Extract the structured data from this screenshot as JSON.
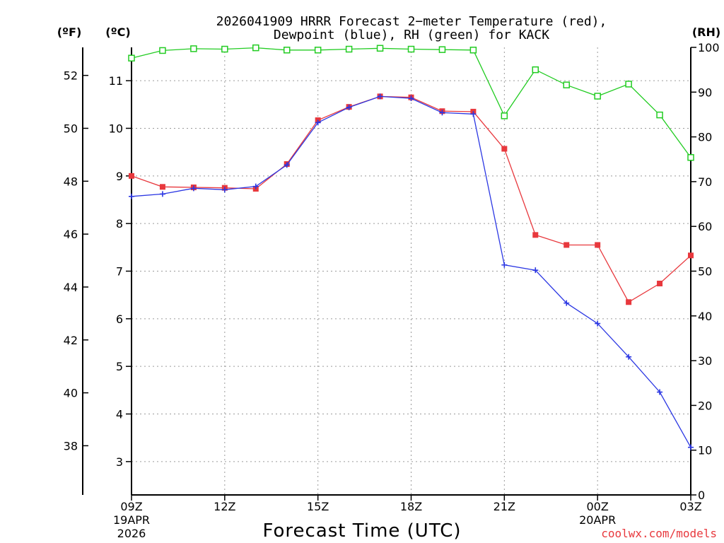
{
  "chart_data": {
    "type": "line",
    "title_line1": "2026041909 HRRR Forecast 2−meter Temperature (red),",
    "title_line2": "Dewpoint (blue), RH (green) for KACK",
    "xlabel": "Forecast Time (UTC)",
    "credit": "coolwx.com/models",
    "unit_labels": {
      "fahrenheit": "(ºF)",
      "celsius": "(ºC)",
      "rh": "(RH)"
    },
    "x_hours": [
      0,
      1,
      2,
      3,
      4,
      5,
      6,
      7,
      8,
      9,
      10,
      11,
      12,
      13,
      14,
      15,
      16,
      17,
      18
    ],
    "xlim": [
      0,
      18
    ],
    "x_ticks": [
      {
        "hour": 0,
        "label": "09Z",
        "sub1": "19APR",
        "sub2": "2026"
      },
      {
        "hour": 3,
        "label": "12Z"
      },
      {
        "hour": 6,
        "label": "15Z"
      },
      {
        "hour": 9,
        "label": "18Z"
      },
      {
        "hour": 12,
        "label": "21Z"
      },
      {
        "hour": 15,
        "label": "00Z",
        "sub1": "20APR"
      },
      {
        "hour": 18,
        "label": "03Z"
      }
    ],
    "celsius_axis": {
      "range": [
        2.3,
        11.7
      ],
      "ticks": [
        "3",
        "4",
        "5",
        "6",
        "7",
        "8",
        "9",
        "10",
        "11"
      ]
    },
    "fahrenheit_axis": {
      "range": [
        36.14,
        53.06
      ],
      "ticks": [
        "38",
        "40",
        "42",
        "44",
        "46",
        "48",
        "50",
        "52"
      ]
    },
    "rh_axis": {
      "range": [
        0,
        100
      ],
      "ticks": [
        "0",
        "10",
        "20",
        "30",
        "40",
        "50",
        "60",
        "70",
        "80",
        "90",
        "100"
      ]
    },
    "series": [
      {
        "name": "Temperature",
        "units": "C",
        "color": "#e8383d",
        "marker": "filled-square",
        "values": [
          9.0,
          8.77,
          8.76,
          8.75,
          8.73,
          9.25,
          10.17,
          10.45,
          10.67,
          10.65,
          10.36,
          10.35,
          9.57,
          7.76,
          7.55,
          7.55,
          6.35,
          6.74,
          7.33
        ]
      },
      {
        "name": "Dewpoint",
        "units": "C",
        "color": "#2b37e3",
        "marker": "plus",
        "values": [
          8.57,
          8.62,
          8.74,
          8.71,
          8.78,
          9.23,
          10.12,
          10.44,
          10.67,
          10.63,
          10.33,
          10.3,
          7.13,
          7.02,
          6.33,
          5.9,
          5.2,
          4.46,
          3.3
        ]
      },
      {
        "name": "RH",
        "units": "%",
        "color": "#22cc22",
        "marker": "open-square",
        "values": [
          97.6,
          99.3,
          99.7,
          99.6,
          99.9,
          99.4,
          99.4,
          99.6,
          99.8,
          99.6,
          99.5,
          99.4,
          84.7,
          95.0,
          91.6,
          89.1,
          91.8,
          84.9,
          75.4
        ]
      }
    ]
  }
}
